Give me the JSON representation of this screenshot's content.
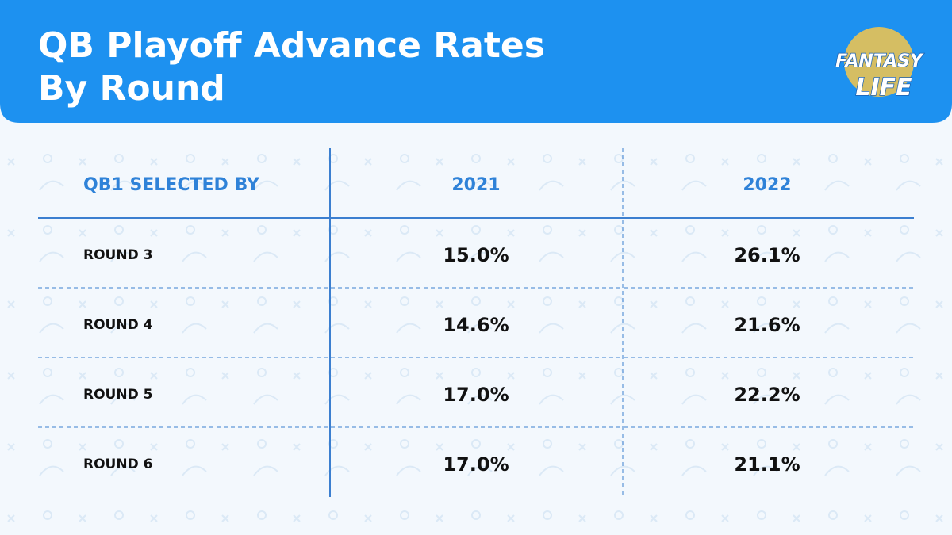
{
  "header": {
    "title_lines": [
      "QB Playoff Advance Rates",
      "By Round"
    ]
  },
  "logo": {
    "lines": [
      "FANTASY",
      "LIFE"
    ]
  },
  "table": {
    "columns": [
      "QB1 SELECTED BY",
      "2021",
      "2022"
    ],
    "rows": [
      [
        "ROUND 3",
        "15.0%",
        "26.1%"
      ],
      [
        "ROUND 4",
        "14.6%",
        "21.6%"
      ],
      [
        "ROUND 5",
        "17.0%",
        "22.2%"
      ],
      [
        "ROUND 6",
        "17.0%",
        "21.1%"
      ]
    ]
  }
}
